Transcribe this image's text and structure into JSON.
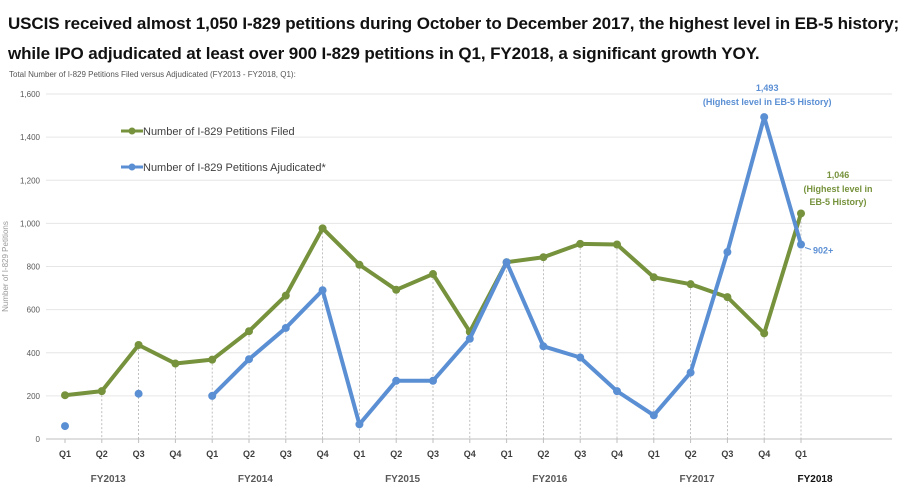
{
  "headline": {
    "line1": "USCIS received almost 1,050 I-829 petitions during October to December 2017, the highest level in EB-5 history;",
    "line2": "while IPO adjudicated at least over 900 I-829 petitions in Q1, FY2018, a significant growth YOY."
  },
  "chart_data": {
    "type": "line",
    "title": "Total Number of I-829 Petitions Filed versus Adjudicated (FY2013 - FY2018, Q1):",
    "ylabel": "Number of I-829 Petitions",
    "xlabel": "",
    "ylim": [
      0,
      1600
    ],
    "yticks": [
      "0",
      "200",
      "400",
      "600",
      "800",
      "1,000",
      "1,200",
      "1,400",
      "1,600"
    ],
    "grid": true,
    "legend_position": "top-left",
    "categories": [
      "Q1",
      "Q2",
      "Q3",
      "Q4",
      "Q1",
      "Q2",
      "Q3",
      "Q4",
      "Q1",
      "Q2",
      "Q3",
      "Q4",
      "Q1",
      "Q2",
      "Q3",
      "Q4",
      "Q1",
      "Q2",
      "Q3",
      "Q4",
      "Q1"
    ],
    "fiscal_years": [
      {
        "label": "FY2013",
        "start": 0,
        "end": 3
      },
      {
        "label": "FY2014",
        "start": 4,
        "end": 7
      },
      {
        "label": "FY2015",
        "start": 8,
        "end": 11
      },
      {
        "label": "FY2016",
        "start": 12,
        "end": 15
      },
      {
        "label": "FY2017",
        "start": 16,
        "end": 19
      },
      {
        "label": "FY2018",
        "start": 20,
        "end": 20
      }
    ],
    "series": [
      {
        "name": "Number of I-829 Petitions Filed",
        "color": "#76923c",
        "values": [
          203,
          222,
          436,
          350,
          368,
          500,
          665,
          977,
          808,
          692,
          765,
          497,
          820,
          843,
          905,
          902,
          750,
          718,
          658,
          490,
          1046
        ]
      },
      {
        "name": "Number of I-829 Petitions Ajudicated*",
        "color": "#5b8fd4",
        "values": [
          60,
          null,
          210,
          null,
          200,
          370,
          515,
          690,
          68,
          270,
          270,
          465,
          820,
          430,
          378,
          222,
          110,
          308,
          867,
          1493,
          902
        ]
      }
    ],
    "annotations": [
      {
        "value_text": "1,493",
        "note": "(Highest level in EB-5 History)",
        "series": 1,
        "index": 19
      },
      {
        "value_text": "1,046",
        "note_lines": [
          "(Highest level in",
          "EB-5 History)"
        ],
        "series": 0,
        "index": 20
      },
      {
        "value_text": "902+",
        "series": 1,
        "index": 20
      }
    ]
  }
}
